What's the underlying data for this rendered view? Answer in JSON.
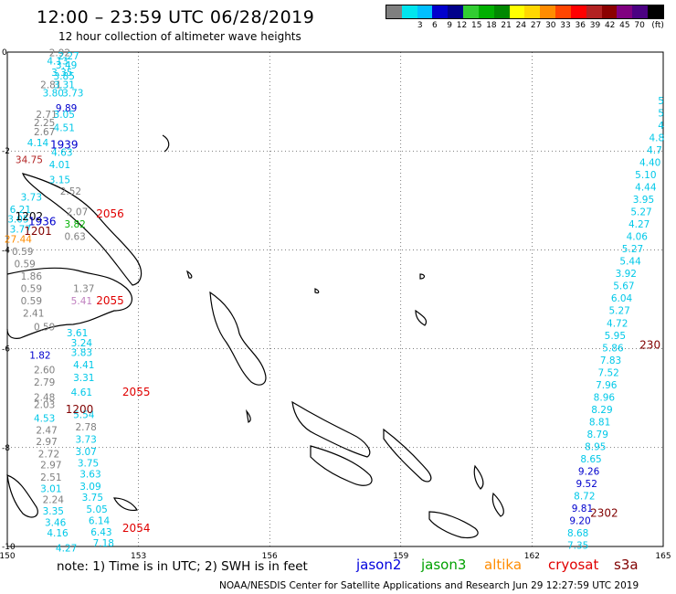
{
  "header": {
    "title": "12:00 – 23:59 UTC 06/28/2019",
    "subtitle": "12 hour collection of altimeter wave heights"
  },
  "scale": {
    "unit": "(ft)",
    "colors": [
      "#7f7f7f",
      "#00e5ee",
      "#00bfff",
      "#0000cd",
      "#00008b",
      "#32cd32",
      "#00b000",
      "#008800",
      "#ffff00",
      "#ffd700",
      "#ff8c00",
      "#ff4500",
      "#ff0000",
      "#b22222",
      "#8b0000",
      "#800080",
      "#4b0082",
      "#000000"
    ],
    "labels": [
      "3",
      "6",
      "9",
      "12",
      "15",
      "18",
      "21",
      "24",
      "27",
      "30",
      "33",
      "36",
      "39",
      "42",
      "45",
      "70"
    ]
  },
  "axes": {
    "x_ticks": [
      "150",
      "153",
      "156",
      "159",
      "162",
      "165"
    ],
    "y_ticks": [
      "0",
      "-2",
      "-4",
      "-6",
      "-8",
      "-10"
    ]
  },
  "chart_data": {
    "type": "scatter",
    "xlim": [
      150,
      165
    ],
    "ylim": [
      -10,
      0
    ],
    "track_times": [
      {
        "label": "1939",
        "color": "#0000cd",
        "lon": 151.3,
        "lat": -1.95
      },
      {
        "label": "1202",
        "color": "#000000",
        "lon": 150.5,
        "lat": -3.4
      },
      {
        "label": "1936",
        "color": "#0000cd",
        "lon": 150.8,
        "lat": -3.5
      },
      {
        "label": "1201",
        "color": "#800000",
        "lon": 150.7,
        "lat": -3.7
      },
      {
        "label": "2056",
        "color": "#e00000",
        "lon": 152.35,
        "lat": -3.35
      },
      {
        "label": "2055",
        "color": "#e00000",
        "lon": 152.35,
        "lat": -5.1
      },
      {
        "label": "2055",
        "color": "#e00000",
        "lon": 152.95,
        "lat": -6.95
      },
      {
        "label": "1200",
        "color": "#800000",
        "lon": 151.65,
        "lat": -7.3
      },
      {
        "label": "2054",
        "color": "#e00000",
        "lon": 152.95,
        "lat": -9.7
      },
      {
        "label": "2302",
        "color": "#800000",
        "lon": 163.65,
        "lat": -9.4
      },
      {
        "label": "230",
        "color": "#800000",
        "lon": 164.7,
        "lat": -6.0
      }
    ],
    "values": [
      {
        "v": "2.92",
        "c": "#7f7f7f",
        "lon": 151.2,
        "lat": -0.08
      },
      {
        "v": "2.27",
        "c": "#00c8e8",
        "lon": 151.4,
        "lat": -0.15
      },
      {
        "v": "4.13",
        "c": "#00c8e8",
        "lon": 151.15,
        "lat": -0.25
      },
      {
        "v": "3.49",
        "c": "#00c8e8",
        "lon": 151.35,
        "lat": -0.33
      },
      {
        "v": "3.35",
        "c": "#00c8e8",
        "lon": 151.25,
        "lat": -0.48
      },
      {
        "v": "3.85",
        "c": "#00c8e8",
        "lon": 151.3,
        "lat": -0.55
      },
      {
        "v": "2.81",
        "c": "#7f7f7f",
        "lon": 151.0,
        "lat": -0.73
      },
      {
        "v": "3.31",
        "c": "#00c8e8",
        "lon": 151.3,
        "lat": -0.73
      },
      {
        "v": "3.80",
        "c": "#00c8e8",
        "lon": 151.05,
        "lat": -0.9
      },
      {
        "v": "3.73",
        "c": "#00c8e8",
        "lon": 151.5,
        "lat": -0.9
      },
      {
        "v": "9.89",
        "c": "#0000cd",
        "lon": 151.35,
        "lat": -1.2
      },
      {
        "v": "2.71",
        "c": "#7f7f7f",
        "lon": 150.9,
        "lat": -1.33
      },
      {
        "v": "3.05",
        "c": "#00c8e8",
        "lon": 151.3,
        "lat": -1.33
      },
      {
        "v": "2.25",
        "c": "#7f7f7f",
        "lon": 150.85,
        "lat": -1.5
      },
      {
        "v": "4.51",
        "c": "#00c8e8",
        "lon": 151.3,
        "lat": -1.6
      },
      {
        "v": "2.67",
        "c": "#7f7f7f",
        "lon": 150.85,
        "lat": -1.68
      },
      {
        "v": "4.14",
        "c": "#00c8e8",
        "lon": 150.7,
        "lat": -1.9
      },
      {
        "v": "4.63",
        "c": "#00c8e8",
        "lon": 151.25,
        "lat": -2.1
      },
      {
        "v": "34.75",
        "c": "#b22222",
        "lon": 150.5,
        "lat": -2.25
      },
      {
        "v": "4.01",
        "c": "#00c8e8",
        "lon": 151.2,
        "lat": -2.35
      },
      {
        "v": "3.15",
        "c": "#00c8e8",
        "lon": 151.2,
        "lat": -2.65
      },
      {
        "v": "2.52",
        "c": "#7f7f7f",
        "lon": 151.45,
        "lat": -2.88
      },
      {
        "v": "3.73",
        "c": "#00c8e8",
        "lon": 150.55,
        "lat": -3.0
      },
      {
        "v": "6.21",
        "c": "#00c8e8",
        "lon": 150.3,
        "lat": -3.25
      },
      {
        "v": "2.07",
        "c": "#7f7f7f",
        "lon": 151.6,
        "lat": -3.3
      },
      {
        "v": "3.05",
        "c": "#00c8e8",
        "lon": 150.25,
        "lat": -3.45
      },
      {
        "v": "3.82",
        "c": "#00b000",
        "lon": 151.55,
        "lat": -3.55
      },
      {
        "v": "3.77",
        "c": "#00c8e8",
        "lon": 150.3,
        "lat": -3.65
      },
      {
        "v": "0.63",
        "c": "#7f7f7f",
        "lon": 151.55,
        "lat": -3.8
      },
      {
        "v": "27.44",
        "c": "#ff8c00",
        "lon": 150.25,
        "lat": -3.85
      },
      {
        "v": "0.59",
        "c": "#7f7f7f",
        "lon": 150.35,
        "lat": -4.1
      },
      {
        "v": "0.59",
        "c": "#7f7f7f",
        "lon": 150.4,
        "lat": -4.35
      },
      {
        "v": "1.86",
        "c": "#7f7f7f",
        "lon": 150.55,
        "lat": -4.6
      },
      {
        "v": "0.59",
        "c": "#7f7f7f",
        "lon": 150.55,
        "lat": -4.85
      },
      {
        "v": "1.37",
        "c": "#7f7f7f",
        "lon": 151.75,
        "lat": -4.85
      },
      {
        "v": "0.59",
        "c": "#7f7f7f",
        "lon": 150.55,
        "lat": -5.1
      },
      {
        "v": "5.41",
        "c": "#c080c0",
        "lon": 151.7,
        "lat": -5.1
      },
      {
        "v": "2.41",
        "c": "#7f7f7f",
        "lon": 150.6,
        "lat": -5.35
      },
      {
        "v": "0.59",
        "c": "#7f7f7f",
        "lon": 150.85,
        "lat": -5.63
      },
      {
        "v": "3.61",
        "c": "#00c8e8",
        "lon": 151.6,
        "lat": -5.75
      },
      {
        "v": "3.24",
        "c": "#00c8e8",
        "lon": 151.7,
        "lat": -5.95
      },
      {
        "v": "1.82",
        "c": "#0000cd",
        "lon": 150.75,
        "lat": -6.2
      },
      {
        "v": "3.83",
        "c": "#00c8e8",
        "lon": 151.7,
        "lat": -6.15
      },
      {
        "v": "4.41",
        "c": "#00c8e8",
        "lon": 151.75,
        "lat": -6.4
      },
      {
        "v": "2.60",
        "c": "#7f7f7f",
        "lon": 150.85,
        "lat": -6.5
      },
      {
        "v": "3.31",
        "c": "#00c8e8",
        "lon": 151.75,
        "lat": -6.65
      },
      {
        "v": "2.79",
        "c": "#7f7f7f",
        "lon": 150.85,
        "lat": -6.75
      },
      {
        "v": "4.61",
        "c": "#00c8e8",
        "lon": 151.7,
        "lat": -6.95
      },
      {
        "v": "2.48",
        "c": "#7f7f7f",
        "lon": 150.85,
        "lat": -7.05
      },
      {
        "v": "2.03",
        "c": "#7f7f7f",
        "lon": 150.85,
        "lat": -7.2
      },
      {
        "v": "5.54",
        "c": "#00c8e8",
        "lon": 151.75,
        "lat": -7.4
      },
      {
        "v": "4.53",
        "c": "#00c8e8",
        "lon": 150.85,
        "lat": -7.48
      },
      {
        "v": "2.78",
        "c": "#7f7f7f",
        "lon": 151.8,
        "lat": -7.65
      },
      {
        "v": "2.47",
        "c": "#7f7f7f",
        "lon": 150.9,
        "lat": -7.72
      },
      {
        "v": "3.73",
        "c": "#00c8e8",
        "lon": 151.8,
        "lat": -7.9
      },
      {
        "v": "2.97",
        "c": "#7f7f7f",
        "lon": 150.9,
        "lat": -7.95
      },
      {
        "v": "3.07",
        "c": "#00c8e8",
        "lon": 151.8,
        "lat": -8.15
      },
      {
        "v": "2.72",
        "c": "#7f7f7f",
        "lon": 150.95,
        "lat": -8.2
      },
      {
        "v": "3.75",
        "c": "#00c8e8",
        "lon": 151.85,
        "lat": -8.38
      },
      {
        "v": "2.97",
        "c": "#7f7f7f",
        "lon": 151.0,
        "lat": -8.42
      },
      {
        "v": "3.63",
        "c": "#00c8e8",
        "lon": 151.9,
        "lat": -8.6
      },
      {
        "v": "2.51",
        "c": "#7f7f7f",
        "lon": 151.0,
        "lat": -8.67
      },
      {
        "v": "3.09",
        "c": "#00c8e8",
        "lon": 151.9,
        "lat": -8.85
      },
      {
        "v": "3.01",
        "c": "#00c8e8",
        "lon": 151.0,
        "lat": -8.9
      },
      {
        "v": "3.75",
        "c": "#00c8e8",
        "lon": 151.95,
        "lat": -9.08
      },
      {
        "v": "2.24",
        "c": "#7f7f7f",
        "lon": 151.05,
        "lat": -9.12
      },
      {
        "v": "5.05",
        "c": "#00c8e8",
        "lon": 152.05,
        "lat": -9.32
      },
      {
        "v": "3.35",
        "c": "#00c8e8",
        "lon": 151.05,
        "lat": -9.35
      },
      {
        "v": "6.14",
        "c": "#00c8e8",
        "lon": 152.1,
        "lat": -9.55
      },
      {
        "v": "3.46",
        "c": "#00c8e8",
        "lon": 151.1,
        "lat": -9.58
      },
      {
        "v": "6.43",
        "c": "#00c8e8",
        "lon": 152.15,
        "lat": -9.78
      },
      {
        "v": "4.16",
        "c": "#00c8e8",
        "lon": 151.15,
        "lat": -9.8
      },
      {
        "v": "7.18",
        "c": "#00c8e8",
        "lon": 152.2,
        "lat": -10.0
      },
      {
        "v": "4.27",
        "c": "#00c8e8",
        "lon": 151.35,
        "lat": -10.1
      },
      {
        "v": "5",
        "c": "#00c8e8",
        "lon": 164.95,
        "lat": -1.05
      },
      {
        "v": "5",
        "c": "#00c8e8",
        "lon": 164.95,
        "lat": -1.3
      },
      {
        "v": "4",
        "c": "#00c8e8",
        "lon": 164.95,
        "lat": -1.55
      },
      {
        "v": "4.8",
        "c": "#00c8e8",
        "lon": 164.85,
        "lat": -1.8
      },
      {
        "v": "4.7",
        "c": "#00c8e8",
        "lon": 164.8,
        "lat": -2.05
      },
      {
        "v": "4.40",
        "c": "#00c8e8",
        "lon": 164.7,
        "lat": -2.3
      },
      {
        "v": "5.10",
        "c": "#00c8e8",
        "lon": 164.6,
        "lat": -2.55
      },
      {
        "v": "4.44",
        "c": "#00c8e8",
        "lon": 164.6,
        "lat": -2.8
      },
      {
        "v": "3.95",
        "c": "#00c8e8",
        "lon": 164.55,
        "lat": -3.05
      },
      {
        "v": "5.27",
        "c": "#00c8e8",
        "lon": 164.5,
        "lat": -3.3
      },
      {
        "v": "4.27",
        "c": "#00c8e8",
        "lon": 164.45,
        "lat": -3.55
      },
      {
        "v": "4.06",
        "c": "#00c8e8",
        "lon": 164.4,
        "lat": -3.8
      },
      {
        "v": "5.27",
        "c": "#00c8e8",
        "lon": 164.3,
        "lat": -4.05
      },
      {
        "v": "5.44",
        "c": "#00c8e8",
        "lon": 164.25,
        "lat": -4.3
      },
      {
        "v": "3.92",
        "c": "#00c8e8",
        "lon": 164.15,
        "lat": -4.55
      },
      {
        "v": "5.67",
        "c": "#00c8e8",
        "lon": 164.1,
        "lat": -4.8
      },
      {
        "v": "6.04",
        "c": "#00c8e8",
        "lon": 164.05,
        "lat": -5.05
      },
      {
        "v": "5.27",
        "c": "#00c8e8",
        "lon": 164.0,
        "lat": -5.3
      },
      {
        "v": "4.72",
        "c": "#00c8e8",
        "lon": 163.95,
        "lat": -5.55
      },
      {
        "v": "5.95",
        "c": "#00c8e8",
        "lon": 163.9,
        "lat": -5.8
      },
      {
        "v": "5.86",
        "c": "#00c8e8",
        "lon": 163.85,
        "lat": -6.05
      },
      {
        "v": "7.83",
        "c": "#00c8e8",
        "lon": 163.8,
        "lat": -6.3
      },
      {
        "v": "7.52",
        "c": "#00c8e8",
        "lon": 163.75,
        "lat": -6.55
      },
      {
        "v": "7.96",
        "c": "#00c8e8",
        "lon": 163.7,
        "lat": -6.8
      },
      {
        "v": "8.96",
        "c": "#00c8e8",
        "lon": 163.65,
        "lat": -7.05
      },
      {
        "v": "8.29",
        "c": "#00c8e8",
        "lon": 163.6,
        "lat": -7.3
      },
      {
        "v": "8.81",
        "c": "#00c8e8",
        "lon": 163.55,
        "lat": -7.55
      },
      {
        "v": "8.79",
        "c": "#00c8e8",
        "lon": 163.5,
        "lat": -7.8
      },
      {
        "v": "8.95",
        "c": "#00c8e8",
        "lon": 163.45,
        "lat": -8.05
      },
      {
        "v": "8.65",
        "c": "#00c8e8",
        "lon": 163.35,
        "lat": -8.3
      },
      {
        "v": "9.26",
        "c": "#0000cd",
        "lon": 163.3,
        "lat": -8.55
      },
      {
        "v": "9.52",
        "c": "#0000cd",
        "lon": 163.25,
        "lat": -8.8
      },
      {
        "v": "8.72",
        "c": "#00c8e8",
        "lon": 163.2,
        "lat": -9.05
      },
      {
        "v": "9.81",
        "c": "#0000cd",
        "lon": 163.15,
        "lat": -9.3
      },
      {
        "v": "9.20",
        "c": "#0000cd",
        "lon": 163.1,
        "lat": -9.55
      },
      {
        "v": "8.68",
        "c": "#00c8e8",
        "lon": 163.05,
        "lat": -9.8
      },
      {
        "v": "7.35",
        "c": "#00c8e8",
        "lon": 163.05,
        "lat": -10.05
      }
    ]
  },
  "legend": {
    "note": "note:  1) Time is in UTC; 2) SWH is in feet",
    "satellites": [
      {
        "name": "jason2",
        "color": "#0000dd"
      },
      {
        "name": "jason3",
        "color": "#00a000"
      },
      {
        "name": "altika",
        "color": "#ff8c00"
      },
      {
        "name": "cryosat",
        "color": "#e00000"
      },
      {
        "name": "s3a",
        "color": "#800000"
      }
    ]
  },
  "footer": {
    "credit": "NOAA/NESDIS Center for Satellite Applications and Research     Jun 29 12:27:59 UTC 2019"
  }
}
